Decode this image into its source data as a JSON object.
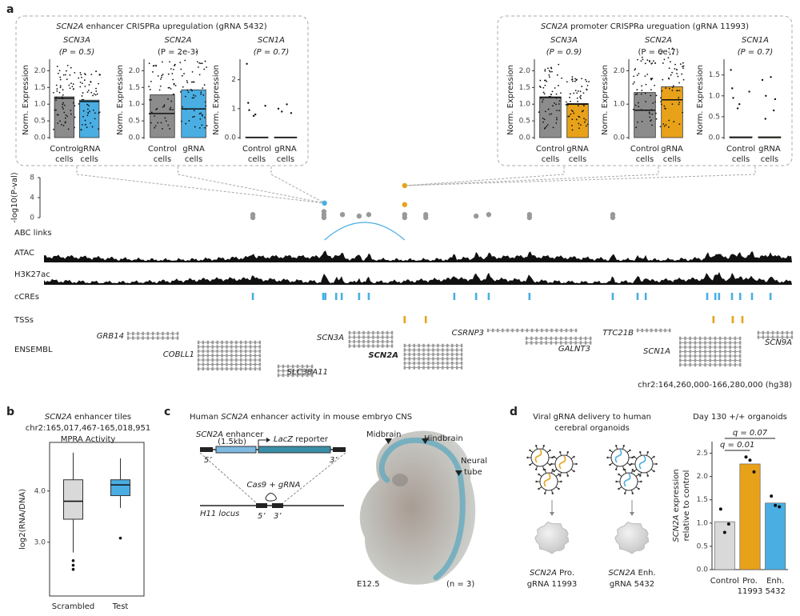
{
  "figure": {
    "panel_a": {
      "label": "a",
      "boxes": [
        {
          "title_gene": "SCN2A",
          "title_text": " enhancer CRISPRa upregulation (gRNA 5432)",
          "plots": [
            {
              "gene": "SCN3A",
              "p_label": "(P = 0.5)",
              "text_color": "#999999",
              "ylabel": "Norm. Expression",
              "ylim": [
                0,
                2.25
              ],
              "yticks": [
                {
                  "value": 0,
                  "label": "0.0"
                },
                0.5,
                {
                  "value": 1,
                  "label": "1.0"
                },
                1.5,
                {
                  "value": 2,
                  "label": "2.0"
                }
              ],
              "categories": [
                [
                  "Control",
                  "cells"
                ],
                [
                  "gRNA",
                  "cells"
                ]
              ],
              "colors": [
                "#8c8c8c",
                "#4aaee3"
              ],
              "means": [
                1.22,
                1.12
              ],
              "medians": [
                1.18,
                1.08
              ]
            },
            {
              "gene": "SCN2A",
              "p_label": "(P = 2e-3)",
              "text_color": "#000000",
              "ylabel": "Norm. Expression",
              "ylim": [
                0,
                2.25
              ],
              "yticks": [
                {
                  "value": 0,
                  "label": "0.0"
                },
                0.5,
                {
                  "value": 1,
                  "label": "1.0"
                },
                1.5,
                {
                  "value": 2,
                  "label": "2.0"
                }
              ],
              "categories": [
                [
                  "Control",
                  "cells"
                ],
                [
                  "gRNA",
                  "cells"
                ]
              ],
              "colors": [
                "#8c8c8c",
                "#4aaee3"
              ],
              "means": [
                1.28,
                1.43
              ],
              "medians": [
                0.72,
                0.86
              ]
            },
            {
              "gene": "SCN1A",
              "p_label": "(P = 0.7)",
              "text_color": "#999999",
              "ylabel": "Norm. Expression",
              "ylim": [
                0,
                2.6
              ],
              "yticks": [
                {
                  "value": 0,
                  "label": "0.0"
                },
                1,
                2
              ],
              "categories": [
                [
                  "Control",
                  "cells"
                ],
                [
                  "gRNA",
                  "cells"
                ]
              ],
              "colors": [
                "#8c8c8c",
                "#4aaee3"
              ],
              "means": [
                0.02,
                0.02
              ],
              "medians": [
                0,
                0
              ],
              "points": [
                [
                  2.55,
                  1.2,
                  1.1,
                  0.95,
                  0.8,
                  0.75
                ],
                [
                  1.15,
                  1.0,
                  0.9,
                  0.85
                ]
              ]
            }
          ]
        },
        {
          "title_gene": "SCN2A",
          "title_text": " promoter CRISPRa ureguation (gRNA 11993)",
          "plots": [
            {
              "gene": "SCN3A",
              "p_label": "(P = 0.9)",
              "text_color": "#999999",
              "ylabel": "Norm. Expression",
              "ylim": [
                0,
                2.25
              ],
              "yticks": [
                {
                  "value": 0,
                  "label": "0.0"
                },
                0.5,
                {
                  "value": 1,
                  "label": "1.0"
                },
                1.5,
                {
                  "value": 2,
                  "label": "2.0"
                }
              ],
              "categories": [
                [
                  "Control",
                  "cells"
                ],
                [
                  "gRNA",
                  "cells"
                ]
              ],
              "colors": [
                "#8c8c8c",
                "#e8a21a"
              ],
              "means": [
                1.22,
                1.02
              ],
              "medians": [
                1.2,
                1.0
              ]
            },
            {
              "gene": "SCN2A",
              "p_label": "(P = 6e-7)",
              "text_color": "#000000",
              "ylabel": "Norm. Expression",
              "ylim": [
                0,
                2.25
              ],
              "yticks": [
                {
                  "value": 0,
                  "label": "0.0"
                },
                {
                  "value": 1,
                  "label": "1.0"
                },
                {
                  "value": 2,
                  "label": "2.0"
                }
              ],
              "categories": [
                [
                  "Control",
                  "cells"
                ],
                [
                  "gRNA",
                  "cells"
                ]
              ],
              "colors": [
                "#8c8c8c",
                "#e8a21a"
              ],
              "means": [
                1.35,
                1.52
              ],
              "medians": [
                0.82,
                1.13
              ]
            },
            {
              "gene": "SCN1A",
              "p_label": "(P = 0.7)",
              "text_color": "#999999",
              "ylabel": "Norm. Expression",
              "ylim": [
                0,
                1.8
              ],
              "yticks": [
                {
                  "value": 0,
                  "label": "0.0"
                },
                0.5,
                {
                  "value": 1,
                  "label": "1.0"
                },
                1.5
              ],
              "categories": [
                [
                  "Control",
                  "cells"
                ],
                [
                  "gRNA",
                  "cells"
                ]
              ],
              "colors": [
                "#8c8c8c",
                "#e8a21a"
              ],
              "means": [
                0.02,
                0.02
              ],
              "medians": [
                0,
                0
              ],
              "points": [
                [
                  1.62,
                  1.18,
                  1.1,
                  0.95,
                  0.8,
                  0.7
                ],
                [
                  1.45,
                  1.38,
                  1.0,
                  0.92,
                  0.65,
                  0.45
                ]
              ]
            }
          ]
        }
      ],
      "track": {
        "ylabel": "-log10(P-val)",
        "ylim": [
          0,
          8
        ],
        "yticks": [
          0,
          4,
          8
        ],
        "xlim": [
          164260000,
          166280000
        ],
        "points": {
          "x": [
            164824000,
            164824000,
            165016000,
            165016000,
            165016000,
            165066000,
            165111000,
            165137000,
            165234000,
            165234000,
            165291000,
            165291000,
            165427000,
            165461000,
            165571000,
            165571000,
            165796000,
            165796000,
            165017467,
            165234000,
            165234000
          ],
          "y": [
            0,
            0.6,
            0,
            0.6,
            1.2,
            0.6,
            0.3,
            0.6,
            0,
            0.6,
            0,
            0.6,
            0.3,
            0.6,
            0,
            0.6,
            0,
            0.6,
            2.9,
            6.4,
            2.6
          ],
          "colors": [
            "#999999",
            "#999999",
            "#999999",
            "#999999",
            "#999999",
            "#999999",
            "#999999",
            "#999999",
            "#999999",
            "#999999",
            "#999999",
            "#999999",
            "#999999",
            "#999999",
            "#999999",
            "#999999",
            "#999999",
            "#999999",
            "#4aaee3",
            "#e8a21a",
            "#e8a21a"
          ]
        },
        "abc_label": "ABC links",
        "abc_link": [
          165017467,
          165234000
        ],
        "abc_color": "#4aaee3",
        "atac_label": "ATAC",
        "h3k27ac_label": "H3K27ac",
        "ccre_label": "cCREs",
        "ccre_color": "#4aaee3",
        "ccres": [
          164824000,
          165014000,
          165020000,
          165049000,
          165064000,
          165111000,
          165137000,
          165368000,
          165427000,
          165461000,
          165571000,
          165796000,
          165863000,
          165885000,
          166051000,
          166073000,
          166083000,
          166118000,
          166140000,
          166172000,
          166222000
        ],
        "tss_label": "TSSs",
        "tss_color": "#e8a21a",
        "tss": [
          165234000,
          165291000,
          166068000,
          166120000,
          166146000
        ],
        "ensembl_label": "ENSEMBL",
        "genes": [
          {
            "name": "GRB14",
            "start": 164487000,
            "end": 164621000,
            "transcripts": 2,
            "color": "#888888"
          },
          {
            "name": "COBLL1",
            "start": 164677000,
            "end": 164843000,
            "transcripts": 7,
            "color": "#888888"
          },
          {
            "name": "SLC38A11",
            "start": 164893000,
            "end": 164984000,
            "transcripts": 3,
            "color": "#888888"
          },
          {
            "name": "SCN3A",
            "start": 165085000,
            "end": 165200000,
            "transcripts": 4,
            "color": "#888888"
          },
          {
            "name": "SCN2A",
            "start": 165234000,
            "end": 165388000,
            "transcripts": 6,
            "color": "#000000"
          },
          {
            "name": "CSRNP3",
            "start": 165459000,
            "end": 165697000,
            "transcripts": 1,
            "color": "#888888"
          },
          {
            "name": "GALNT3",
            "start": 165563000,
            "end": 165736000,
            "transcripts": 2,
            "color": "#888888"
          },
          {
            "name": "TTC21B",
            "start": 165863000,
            "end": 165950000,
            "transcripts": 1,
            "color": "#888888"
          },
          {
            "name": "SCN1A",
            "start": 165978000,
            "end": 166140000,
            "transcripts": 7,
            "color": "#888888"
          },
          {
            "name": "SCN9A",
            "start": 166189000,
            "end": 166280000,
            "transcripts": 2,
            "color": "#888888"
          }
        ],
        "region": "chr2:164,260,000-166,280,000 (hg38)"
      }
    },
    "panel_b": {
      "label": "b",
      "title_gene": "SCN2A",
      "title_text": " enhancer tiles",
      "subtitle": "chr2:165,017,467-165,018,951",
      "subtitle2": "MPRA Activity",
      "ylabel": "log2(RNA/DNA)",
      "ylim": [
        1.95,
        4.95
      ],
      "yticks": [
        {
          "value": 3,
          "label": "3.0"
        },
        {
          "value": 4,
          "label": "4.0"
        }
      ],
      "categories": [
        "Scrambled",
        "Test"
      ],
      "colors": [
        "#d9d9d9",
        "#4aaee3"
      ],
      "boxes": [
        {
          "whisker_low": 2.8,
          "q1": 3.45,
          "median": 3.8,
          "q3": 4.22,
          "whisker_high": 4.75,
          "outliers": [
            2.64,
            2.55,
            2.47
          ]
        },
        {
          "whisker_low": 3.67,
          "q1": 3.91,
          "median": 4.12,
          "q3": 4.22,
          "whisker_high": 4.64,
          "outliers": [
            3.08
          ]
        }
      ]
    },
    "panel_c": {
      "label": "c",
      "title_pre": "Human ",
      "title_gene": "SCN2A",
      "title_text": " enhancer activity in mouse embryo CNS",
      "enhancer_gene": "SCN2A",
      "enhancer_text": " enhancer",
      "enhancer_size": "(1.5kb)",
      "reporter_gene": "LacZ",
      "reporter_text": " reporter",
      "five_prime": "5’",
      "three_prime": "3’",
      "cas9": "Cas9 + gRNA",
      "locus": "H11 locus",
      "midbrain": "Midbrain",
      "hindbrain": "Hindbrain",
      "neural_tube": [
        "Neural",
        "tube"
      ],
      "stage": "E12.5",
      "n": "(n = 3)"
    },
    "panel_d": {
      "label": "d",
      "heading": [
        "Viral gRNA delivery to human",
        "cerebral organoids"
      ],
      "pro_gene": "SCN2A",
      "pro_text": " Pro.",
      "pro_grna": "gRNA 11993",
      "enh_gene": "SCN2A",
      "enh_text": " Enh.",
      "enh_grna": "gRNA 5432",
      "chart": {
        "type": "bar",
        "title": "Day 130 +/+ organoids",
        "ylabel_gene": "SCN2A",
        "ylabel_text": " expression",
        "ylabel2": "relative to control",
        "categories": [
          [
            "Control"
          ],
          [
            "Pro.",
            "11993"
          ],
          [
            "Enh.",
            "5432"
          ]
        ],
        "colors": [
          "#d9d9d9",
          "#e8a21a",
          "#4aaee3"
        ],
        "values": [
          1.03,
          2.27,
          1.43
        ],
        "points": [
          [
            1.3,
            0.8,
            0.98
          ],
          [
            2.42,
            2.35,
            2.1
          ],
          [
            1.58,
            1.38,
            1.35
          ]
        ],
        "ylim": [
          0,
          2.75
        ],
        "yticks": [
          {
            "value": 0,
            "label": "0.0"
          },
          0.5,
          {
            "value": 1,
            "label": "1.0"
          },
          1.5,
          {
            "value": 2,
            "label": "2.0"
          },
          2.5
        ],
        "annotations": [
          "q = 0.01",
          "q = 0.07"
        ]
      }
    }
  }
}
